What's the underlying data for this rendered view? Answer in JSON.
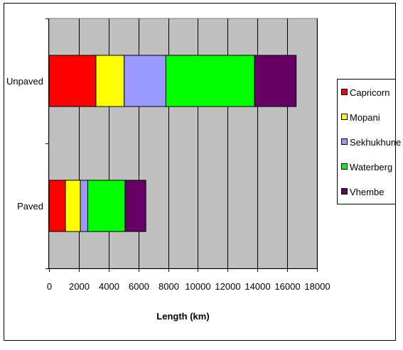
{
  "chart_data": {
    "type": "bar",
    "orientation": "horizontal",
    "stacked": true,
    "categories": [
      "Unpaved",
      "Paved"
    ],
    "series": [
      {
        "name": "Capricorn",
        "color": "#ff0000",
        "values": [
          3150,
          1100
        ]
      },
      {
        "name": "Mopani",
        "color": "#ffff00",
        "values": [
          1900,
          1000
        ]
      },
      {
        "name": "Sekhukhune",
        "color": "#9999ff",
        "values": [
          2800,
          500
        ]
      },
      {
        "name": "Waterberg",
        "color": "#00ff00",
        "values": [
          5950,
          2500
        ]
      },
      {
        "name": "Vhembe",
        "color": "#660066",
        "values": [
          2800,
          1400
        ]
      }
    ],
    "xlabel": "Length (km)",
    "ylabel": "",
    "xlim": [
      0,
      18000
    ],
    "xticks": [
      "0",
      "2000",
      "4000",
      "6000",
      "8000",
      "10000",
      "12000",
      "14000",
      "16000",
      "18000"
    ],
    "plot_background": "#c0c0c0",
    "grid": true,
    "legend_position": "right"
  }
}
